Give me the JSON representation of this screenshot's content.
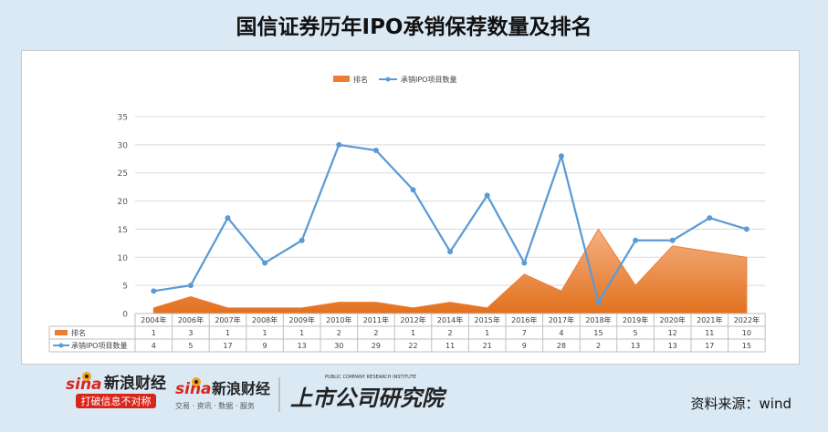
{
  "title": "国信证券历年IPO承销保荐数量及排名",
  "source": "资料来源：wind",
  "logos": {
    "sina_brand": "新浪财经",
    "sina_slogan": "打破信息不对称",
    "sina_brand2": "新浪财经",
    "sina_tagline2": "交易 · 资讯 · 数据 · 服务",
    "institute": "上市公司研究院",
    "institute_en": "PUBLIC COMPANY RESEARCH INSTITUTE"
  },
  "chart_data": {
    "type": "line",
    "categories": [
      "2004年",
      "2006年",
      "2007年",
      "2008年",
      "2009年",
      "2010年",
      "2011年",
      "2012年",
      "2014年",
      "2015年",
      "2016年",
      "2017年",
      "2018年",
      "2019年",
      "2020年",
      "2021年",
      "2022年"
    ],
    "series": [
      {
        "name": "排名",
        "type": "area",
        "color": "#ed7d31",
        "values": [
          1,
          3,
          1,
          1,
          1,
          2,
          2,
          1,
          2,
          1,
          7,
          4,
          15,
          5,
          12,
          11,
          10
        ]
      },
      {
        "name": "承销IPO项目数量",
        "type": "line",
        "color": "#5b9bd5",
        "values": [
          4,
          5,
          17,
          9,
          13,
          30,
          29,
          22,
          11,
          21,
          9,
          28,
          2,
          13,
          13,
          17,
          15
        ]
      }
    ],
    "ylim": [
      0,
      35
    ],
    "yticks": [
      0,
      5,
      10,
      15,
      20,
      25,
      30,
      35
    ],
    "grid": true,
    "legend_position": "top-center",
    "data_table": true
  }
}
